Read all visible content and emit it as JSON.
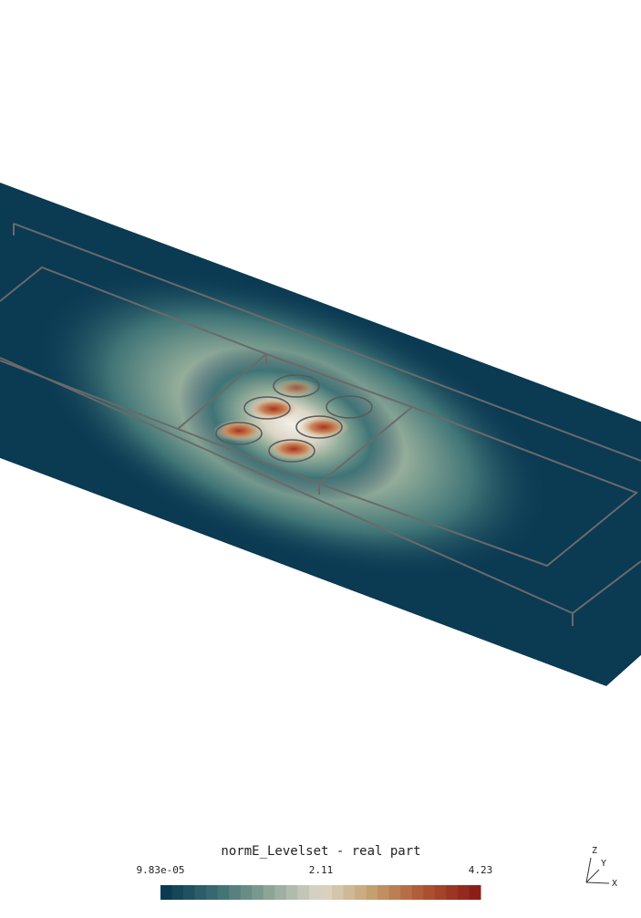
{
  "colorbar": {
    "title": "normE_Levelset - real part",
    "labels": [
      "9.83e-05",
      "2.11",
      "4.23"
    ]
  },
  "orientation_axes": {
    "z": "Z",
    "y": "Y",
    "x": "X"
  }
}
